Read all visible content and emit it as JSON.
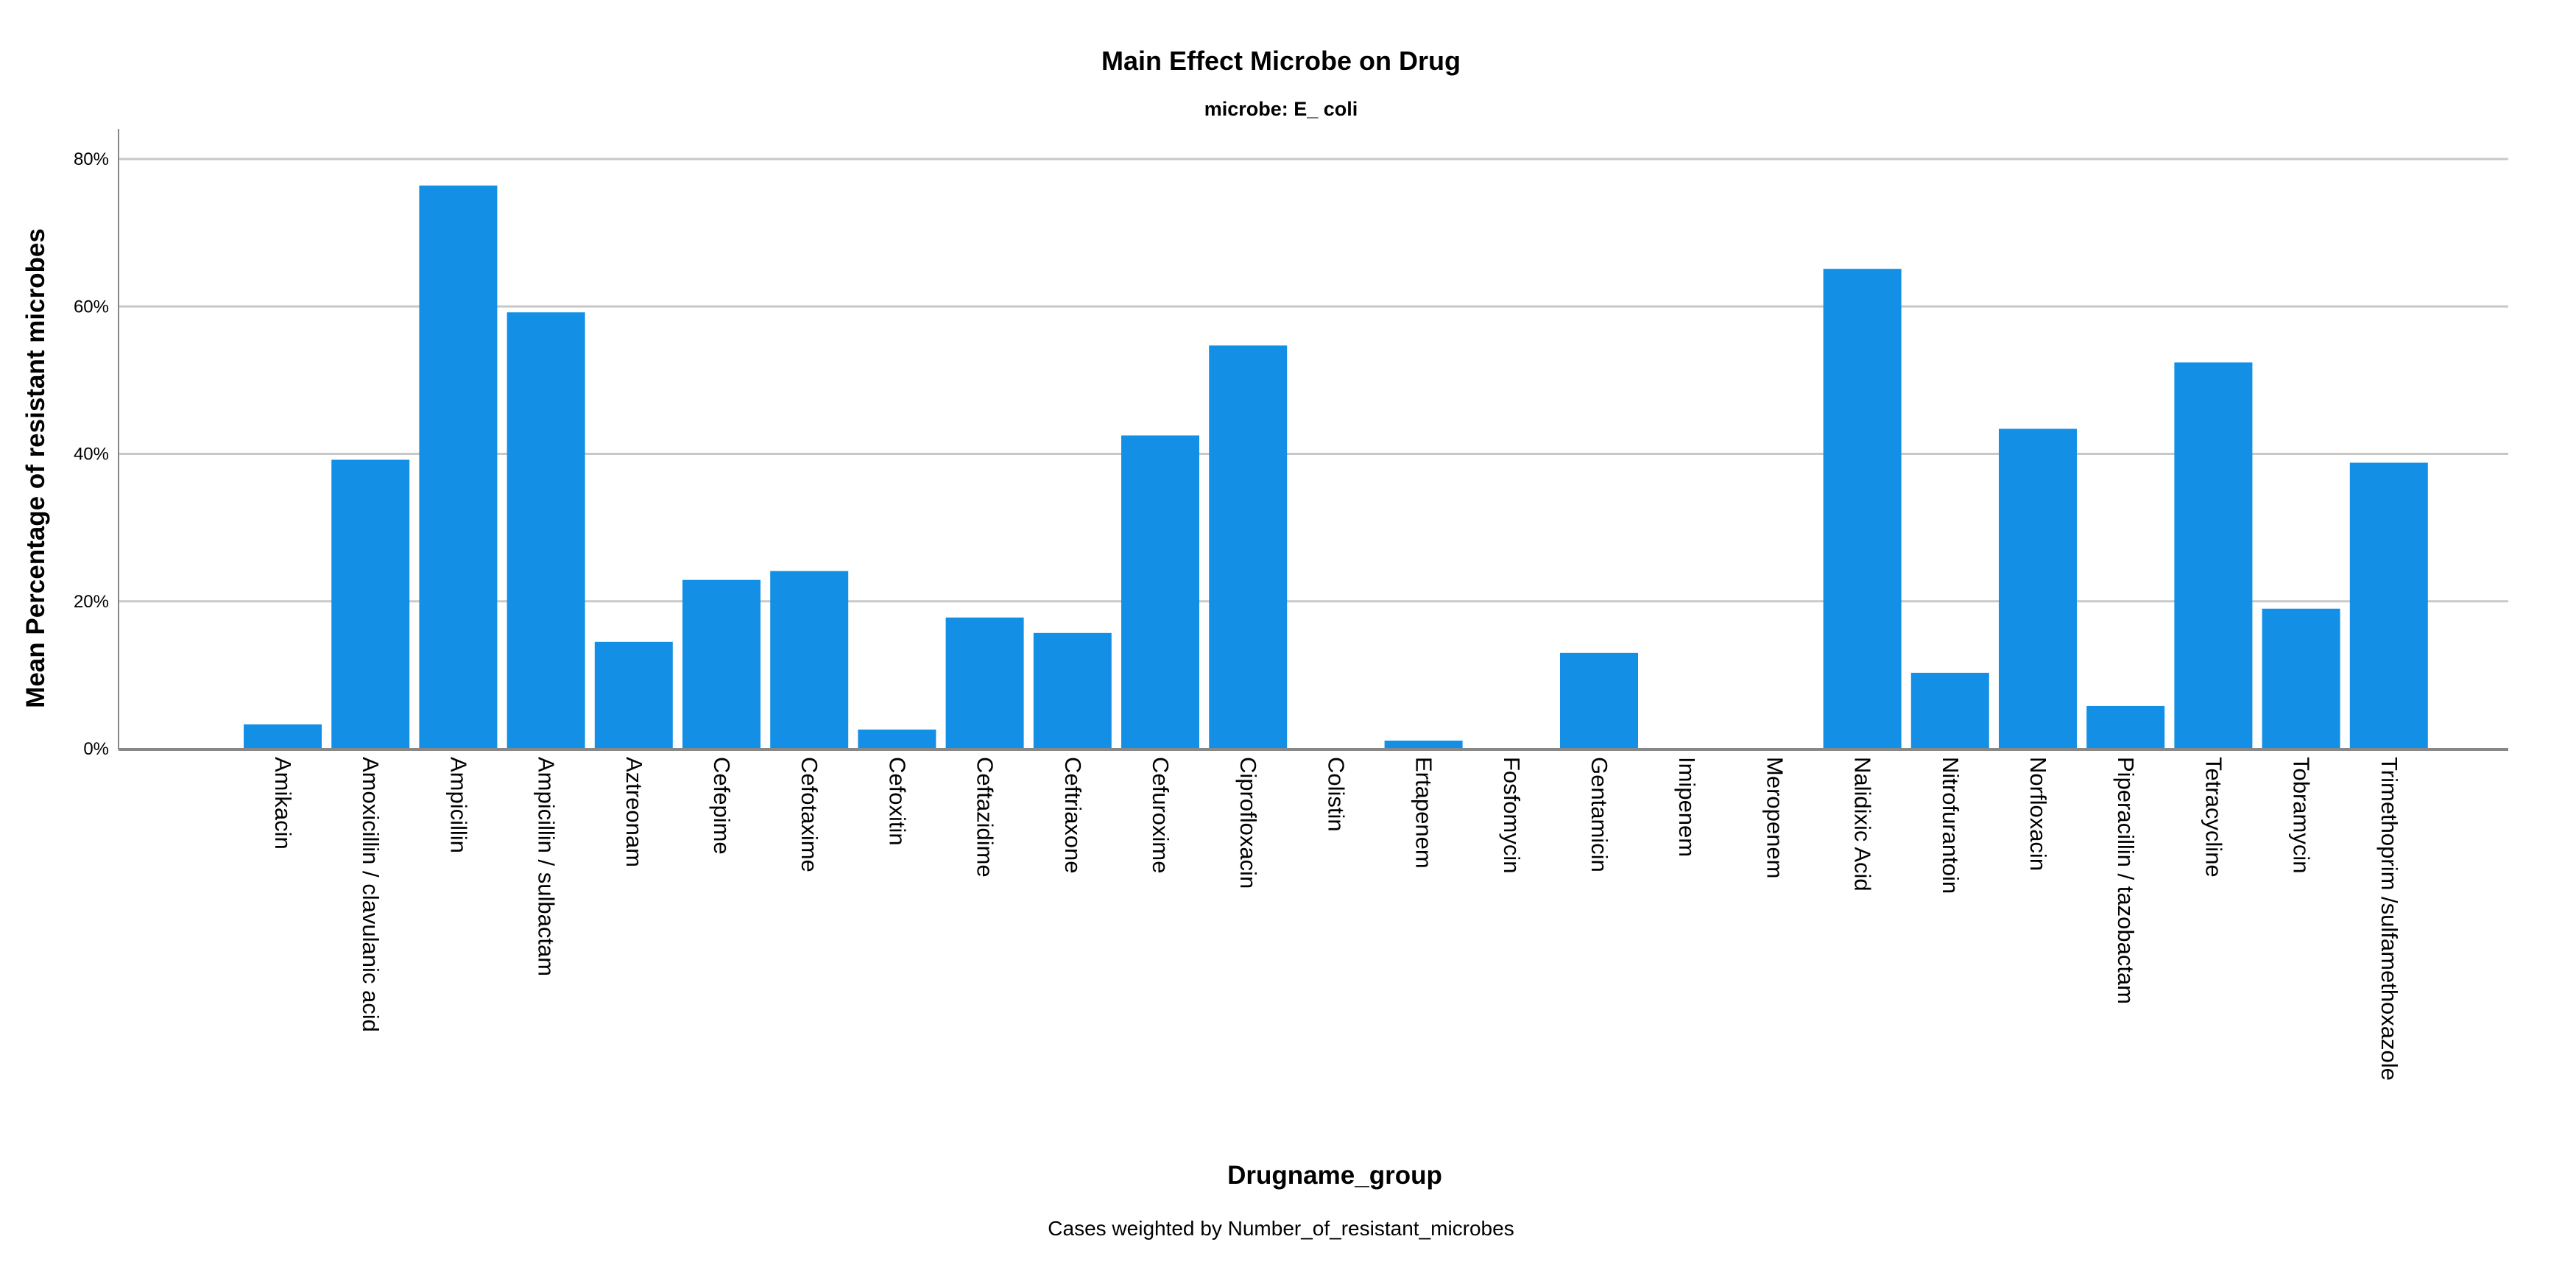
{
  "chart_data": {
    "type": "bar",
    "title": "Main Effect Microbe on Drug",
    "subtitle": "microbe: E_ coli",
    "xlabel": "Drugname_group",
    "ylabel": "Mean Percentage of resistant microbes",
    "footnote": "Cases weighted by Number_of_resistant_microbes",
    "ylim": [
      0,
      80
    ],
    "yticks": [
      0,
      20,
      40,
      60,
      80
    ],
    "ytick_labels": [
      "0%",
      "20%",
      "40%",
      "60%",
      "80%"
    ],
    "grid": true,
    "bar_color": "#1390e6",
    "categories": [
      "Amikacin",
      "Amoxicillin / clavulanic acid",
      "Ampicillin",
      "Ampicillin / sulbactam",
      "Aztreonam",
      "Cefepime",
      "Cefotaxime",
      "Cefoxitin",
      "Ceftazidime",
      "Ceftriaxone",
      "Cefuroxime",
      "Ciprofloxacin",
      "Colistin",
      "Ertapenem",
      "Fosfomycin",
      "Gentamicin",
      "Imipenem",
      "Meropenem",
      "Nalidixic Acid",
      "Nitrofurantoin",
      "Norfloxacin",
      "Piperacillin / tazobactam",
      "Tetracycline",
      "Tobramycin",
      "Trimethoprim /sulfamethoxazole"
    ],
    "values": [
      3.3,
      39.2,
      76.4,
      59.2,
      14.5,
      22.9,
      24.1,
      2.6,
      17.8,
      15.7,
      42.5,
      54.7,
      0,
      1.1,
      0,
      13.0,
      0,
      0,
      65.1,
      10.3,
      43.4,
      5.8,
      52.4,
      19.0,
      38.8
    ]
  }
}
